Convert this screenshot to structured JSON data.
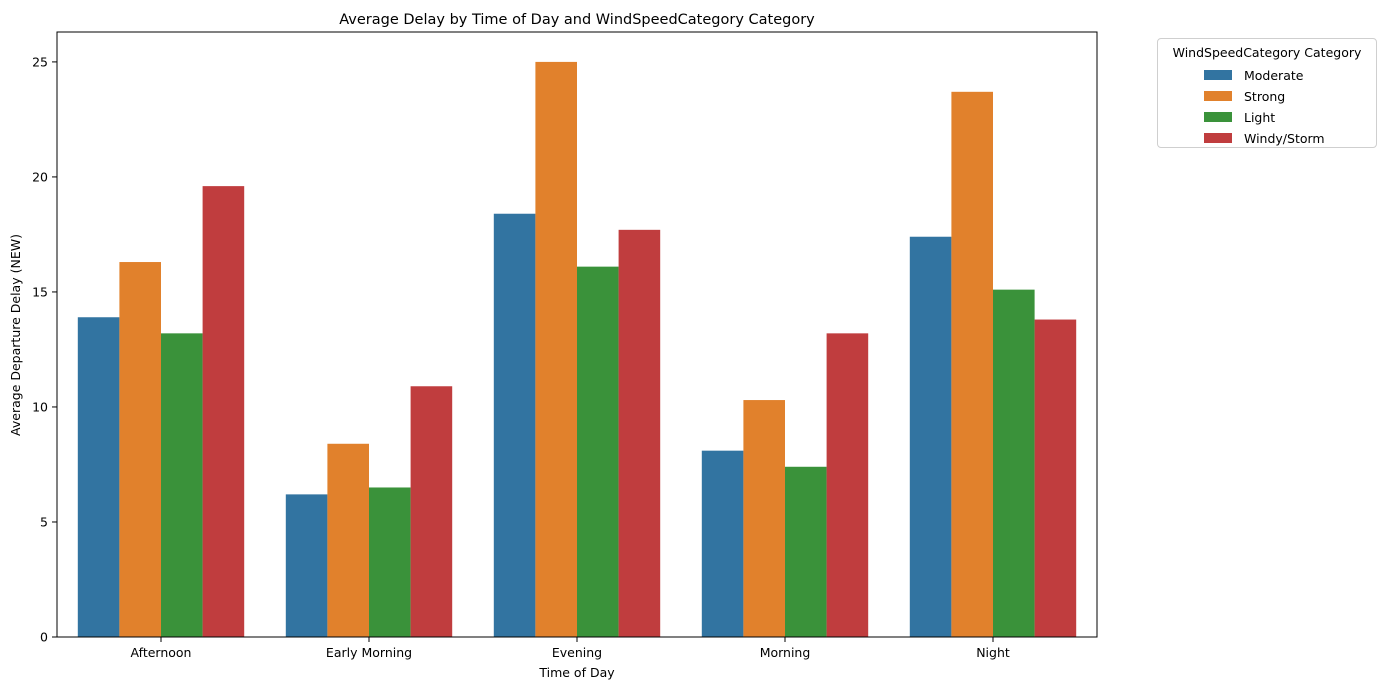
{
  "chart_data": {
    "type": "bar",
    "title": "Average Delay by Time of Day and WindSpeedCategory Category",
    "xlabel": "Time of Day",
    "ylabel": "Average Departure Delay (NEW)",
    "categories": [
      "Afternoon",
      "Early Morning",
      "Evening",
      "Morning",
      "Night"
    ],
    "yticks": [
      "0",
      "5",
      "10",
      "15",
      "20",
      "25"
    ],
    "ylim": [
      0,
      26.3
    ],
    "grid": false,
    "legend": {
      "title": "WindSpeedCategory Category",
      "placement": "outside-top-right"
    },
    "series": [
      {
        "name": "Moderate",
        "color": "#3274a1",
        "values": [
          13.9,
          6.2,
          18.4,
          8.1,
          17.4
        ]
      },
      {
        "name": "Strong",
        "color": "#e1812c",
        "values": [
          16.3,
          8.4,
          25.0,
          10.3,
          23.7
        ]
      },
      {
        "name": "Light",
        "color": "#3a923a",
        "values": [
          13.2,
          6.5,
          16.1,
          7.4,
          15.1
        ]
      },
      {
        "name": "Windy/Storm",
        "color": "#c03d3e",
        "values": [
          19.6,
          10.9,
          17.7,
          13.2,
          13.8
        ]
      }
    ]
  }
}
